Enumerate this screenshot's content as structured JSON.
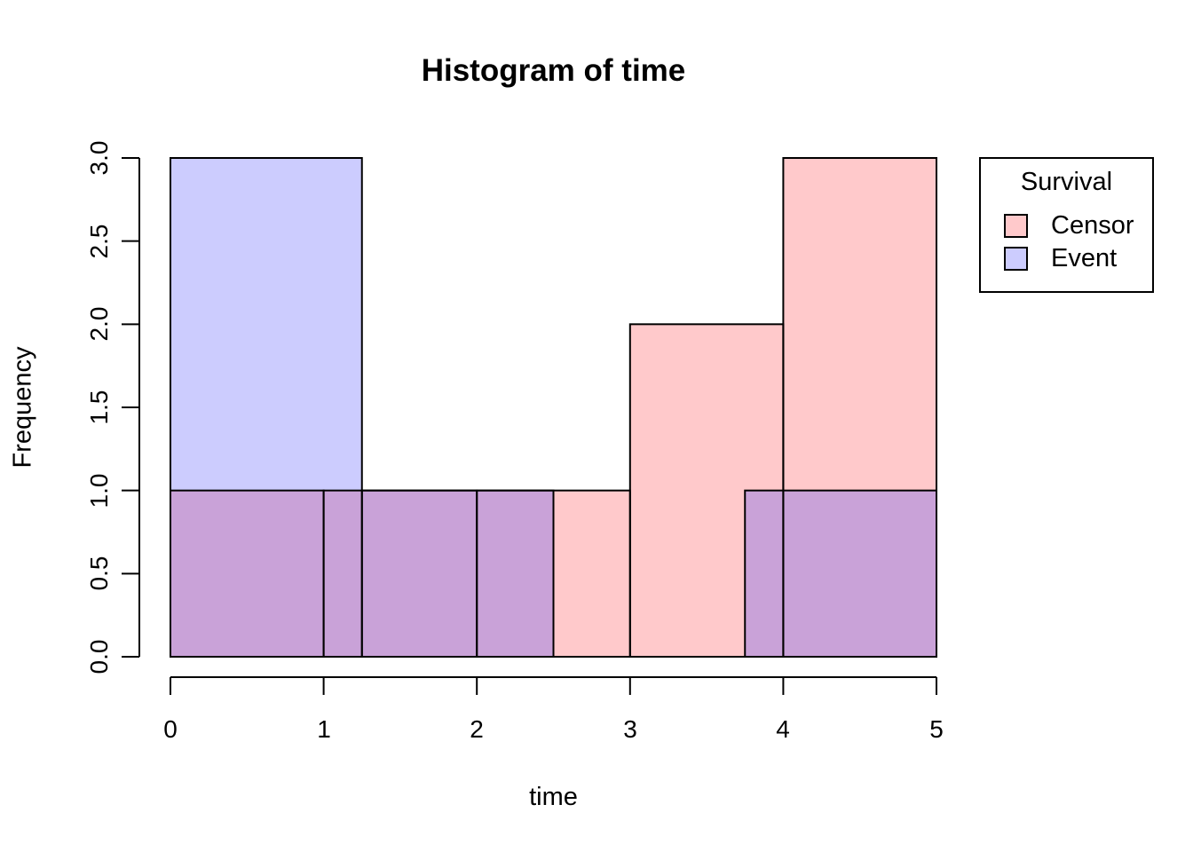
{
  "page": {
    "background": "#FFFFFF"
  },
  "title": "Histogram of time",
  "axes": {
    "xlabel": "time",
    "ylabel": "Frequency",
    "x_ticks": [
      "0",
      "1",
      "2",
      "3",
      "4",
      "5"
    ],
    "y_ticks": [
      "0.0",
      "0.5",
      "1.0",
      "1.5",
      "2.0",
      "2.5",
      "3.0"
    ]
  },
  "legend": {
    "title": "Survival",
    "entries": [
      {
        "label": "Censor",
        "color": "#FFC9CB"
      },
      {
        "label": "Event",
        "color": "#CCCCFE"
      }
    ]
  },
  "chart_data": {
    "type": "bar",
    "subtype": "overlaid-histograms",
    "title": "Histogram of time",
    "xlabel": "time",
    "ylabel": "Frequency",
    "xlim": [
      0,
      5
    ],
    "ylim": [
      0,
      3
    ],
    "x_tick_values": [
      0,
      1,
      2,
      3,
      4,
      5
    ],
    "y_tick_values": [
      0,
      0.5,
      1,
      1.5,
      2,
      2.5,
      3
    ],
    "grid": false,
    "legend_title": "Survival",
    "legend_position": "right-outside",
    "series": [
      {
        "name": "Censor",
        "color": "#FFC9CB",
        "breaks": [
          0,
          1,
          2,
          3,
          4,
          5
        ],
        "counts": [
          1,
          1,
          1,
          2,
          3
        ]
      },
      {
        "name": "Event",
        "color": "#CCCCFE",
        "breaks": [
          0,
          1.25,
          2.5,
          3.75,
          5
        ],
        "counts": [
          3,
          1,
          0,
          1
        ]
      }
    ],
    "overlap_color": "#C9A2D8",
    "edge_color": "#000000"
  }
}
